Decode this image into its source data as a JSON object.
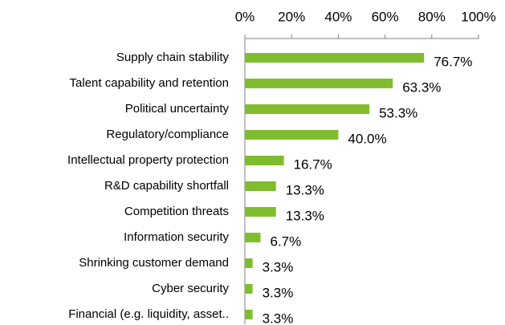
{
  "chart_data": {
    "type": "barh",
    "categories": [
      "Supply chain stability",
      "Talent capability and retention",
      "Political uncertainty",
      "Regulatory/compliance",
      "Intellectual property protection",
      "R&D capability shortfall",
      "Competition threats",
      "Information security",
      "Shrinking customer demand",
      "Cyber security",
      "Financial (e.g. liquidity, asset.."
    ],
    "values": [
      76.7,
      63.3,
      53.3,
      40.0,
      16.7,
      13.3,
      13.3,
      6.7,
      3.3,
      3.3,
      3.3
    ],
    "value_labels": [
      "76.7%",
      "63.3%",
      "53.3%",
      "40.0%",
      "16.7%",
      "13.3%",
      "13.3%",
      "6.7%",
      "3.3%",
      "3.3%",
      "3.3%"
    ],
    "color": "#80bd2e",
    "xlim": [
      0,
      100
    ],
    "xticks": [
      {
        "value": 0,
        "label": "0%"
      },
      {
        "value": 20,
        "label": "20%"
      },
      {
        "value": 40,
        "label": "40%"
      },
      {
        "value": 60,
        "label": "60%"
      },
      {
        "value": 80,
        "label": "80%"
      },
      {
        "value": 100,
        "label": "100%"
      }
    ]
  }
}
